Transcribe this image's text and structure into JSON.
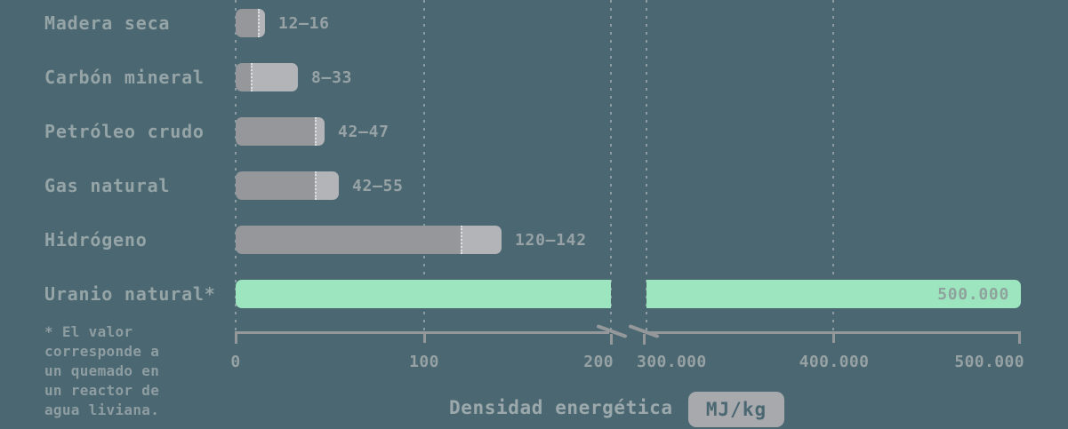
{
  "chart_data": {
    "type": "bar",
    "orientation": "horizontal",
    "xlabel": "Densidad energética",
    "unit": "MJ/kg",
    "categories": [
      "Madera seca",
      "Carbón mineral",
      "Petróleo crudo",
      "Gas natural",
      "Hidrógeno",
      "Uranio natural*"
    ],
    "rows": [
      {
        "label": "Madera seca",
        "min": 12,
        "max": 16,
        "value_label": "12–16"
      },
      {
        "label": "Carbón mineral",
        "min": 8,
        "max": 33,
        "value_label": "8–33"
      },
      {
        "label": "Petróleo crudo",
        "min": 42,
        "max": 47,
        "value_label": "42–47"
      },
      {
        "label": "Gas natural",
        "min": 42,
        "max": 55,
        "value_label": "42–55"
      },
      {
        "label": "Hidrógeno",
        "min": 120,
        "max": 142,
        "value_label": "120–142"
      },
      {
        "label": "Uranio natural*",
        "value": 500000,
        "value_label": "500.000",
        "highlight": true,
        "spans_axis_break": true
      }
    ],
    "axis": {
      "broken": true,
      "left_segment_range": [
        0,
        200
      ],
      "right_segment_range": [
        300000,
        500000
      ],
      "tick_labels": [
        "0",
        "100",
        "200",
        "300.000",
        "400.000",
        "500.000"
      ],
      "grid": true
    },
    "footnote": "* El valor corresponde a un quemado en un reactor de agua liviana.",
    "footnote_display": "* El valor\ncorresponde a\nun quemado en\nun reactor de\nagua liviana.",
    "colors": {
      "background": "#4B6771",
      "bar_min_gray": "#95979B",
      "bar_range_gray": "#B3B4B7",
      "highlight_green": "#9CE5BF",
      "text_gray": "#95A4A6",
      "axis_gray": "#94989B",
      "badge_bg": "#A7A9AD"
    }
  }
}
